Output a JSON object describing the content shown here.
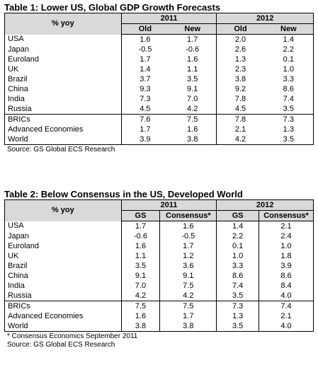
{
  "table1": {
    "title": "Table 1: Lower US, Global GDP Growth Forecasts",
    "header_label": "% yoy",
    "year1": "2011",
    "year2": "2012",
    "sub": [
      "Old",
      "New",
      "Old",
      "New"
    ],
    "group1": [
      {
        "label": "USA",
        "v": [
          "1.6",
          "1.7",
          "2.0",
          "1.4"
        ]
      },
      {
        "label": "Japan",
        "v": [
          "-0.5",
          "-0.6",
          "2.6",
          "2.2"
        ]
      },
      {
        "label": "Euroland",
        "v": [
          "1.7",
          "1.6",
          "1.3",
          "0.1"
        ]
      },
      {
        "label": "UK",
        "v": [
          "1.4",
          "1.1",
          "2.3",
          "1.0"
        ]
      },
      {
        "label": "Brazil",
        "v": [
          "3.7",
          "3.5",
          "3.8",
          "3.3"
        ]
      },
      {
        "label": "China",
        "v": [
          "9.3",
          "9.1",
          "9.2",
          "8.6"
        ]
      },
      {
        "label": "India",
        "v": [
          "7.3",
          "7.0",
          "7.8",
          "7.4"
        ]
      },
      {
        "label": "Russia",
        "v": [
          "4.5",
          "4.2",
          "4.5",
          "3.5"
        ]
      }
    ],
    "group2": [
      {
        "label": "BRICs",
        "v": [
          "7.6",
          "7.5",
          "7.8",
          "7.3"
        ]
      },
      {
        "label": "Advanced Economies",
        "v": [
          "1.7",
          "1.6",
          "2.1",
          "1.3"
        ]
      },
      {
        "label": "World",
        "v": [
          "3.9",
          "3.8",
          "4.2",
          "3.5"
        ]
      }
    ],
    "source": "Source: GS Global ECS Research"
  },
  "table2": {
    "title": "Table 2: Below Consensus in the US, Developed World",
    "header_label": "% yoy",
    "year1": "2011",
    "year2": "2012",
    "sub": [
      "GS",
      "Consensus*",
      "GS",
      "Consensus*"
    ],
    "group1": [
      {
        "label": "USA",
        "v": [
          "1.7",
          "1.6",
          "1.4",
          "2.1"
        ]
      },
      {
        "label": "Japan",
        "v": [
          "-0.6",
          "-0.5",
          "2.2",
          "2.4"
        ]
      },
      {
        "label": "Euroland",
        "v": [
          "1.6",
          "1.7",
          "0.1",
          "1.0"
        ]
      },
      {
        "label": "UK",
        "v": [
          "1.1",
          "1.2",
          "1.0",
          "1.8"
        ]
      },
      {
        "label": "Brazil",
        "v": [
          "3.5",
          "3.6",
          "3.3",
          "3.9"
        ]
      },
      {
        "label": "China",
        "v": [
          "9.1",
          "9.1",
          "8.6",
          "8.6"
        ]
      },
      {
        "label": "India",
        "v": [
          "7.0",
          "7.5",
          "7.4",
          "8.4"
        ]
      },
      {
        "label": "Russia",
        "v": [
          "4.2",
          "4.2",
          "3.5",
          "4.0"
        ]
      }
    ],
    "group2": [
      {
        "label": "BRICs",
        "v": [
          "7.5",
          "7.5",
          "7.3",
          "7.4"
        ]
      },
      {
        "label": "Advanced Economies",
        "v": [
          "1.6",
          "1.7",
          "1.3",
          "2.1"
        ]
      },
      {
        "label": "World",
        "v": [
          "3.8",
          "3.8",
          "3.5",
          "4.0"
        ]
      }
    ],
    "footnote": "* Consensus Economics September 2011",
    "source": "Source: GS Global ECS Research"
  }
}
